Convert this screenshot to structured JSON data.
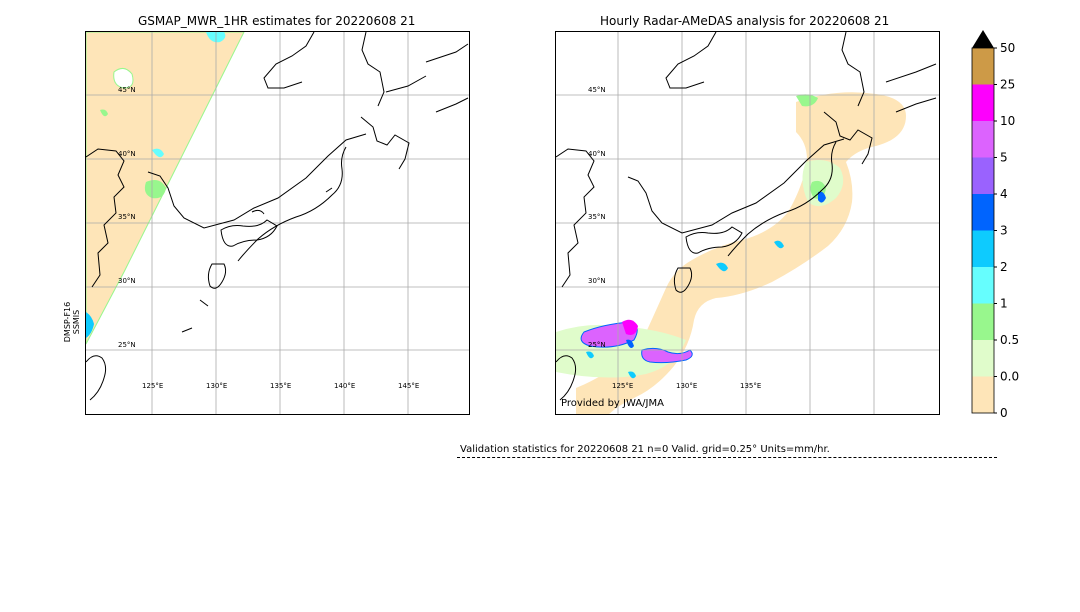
{
  "left_panel": {
    "title": "GSMAP_MWR_1HR estimates for 20220608 21",
    "satellite_label_line1": "DMSP-F16",
    "satellite_label_line2": "SSMIS",
    "lat_labels": [
      "45°N",
      "40°N",
      "35°N",
      "30°N",
      "25°N"
    ],
    "lon_labels": [
      "125°E",
      "130°E",
      "135°E",
      "140°E",
      "145°E"
    ]
  },
  "right_panel": {
    "title": "Hourly Radar-AMeDAS analysis for 20220608 21",
    "lat_labels": [
      "45°N",
      "40°N",
      "35°N",
      "30°N",
      "25°N"
    ],
    "lon_labels": [
      "125°E",
      "130°E",
      "135°E"
    ],
    "credit": "Provided by JWA/JMA"
  },
  "colorbar": {
    "labels": [
      "0",
      "0.01",
      "0.5",
      "1",
      "2",
      "3",
      "4",
      "5",
      "10",
      "25",
      "50"
    ],
    "colors": [
      "#fee5b8",
      "#e0fccb",
      "#98f78d",
      "#66fefe",
      "#0ecbfe",
      "#0064fe",
      "#9a62fe",
      "#dc63fe",
      "#fd00fd",
      "#cd9a47"
    ],
    "extend_color": "#000000"
  },
  "validation": {
    "text": "Validation statistics for 20220608 21  n=0 Valid. grid=0.25° Units=mm/hr."
  },
  "chart_data": [
    {
      "type": "heatmap",
      "title": "GSMAP_MWR_1HR estimates for 20220608 21",
      "units": "mm/hr",
      "lat_ticks": [
        25,
        30,
        35,
        40,
        45
      ],
      "lon_ticks": [
        125,
        130,
        135,
        140,
        145
      ],
      "swath_label": "DMSP-F16 SSMIS",
      "observed_levels": [
        "0-0.01",
        "0.01-0.5",
        "0.5-1",
        "1-2",
        "2-3"
      ]
    },
    {
      "type": "heatmap",
      "title": "Hourly Radar-AMeDAS analysis for 20220608 21",
      "units": "mm/hr",
      "lat_ticks": [
        25,
        30,
        35,
        40,
        45
      ],
      "lon_ticks": [
        125,
        130,
        135
      ],
      "observed_levels": [
        "0-0.01",
        "0.01-0.5",
        "0.5-1",
        "1-2",
        "2-3",
        "3-4",
        "4-5",
        "5-10"
      ]
    }
  ]
}
